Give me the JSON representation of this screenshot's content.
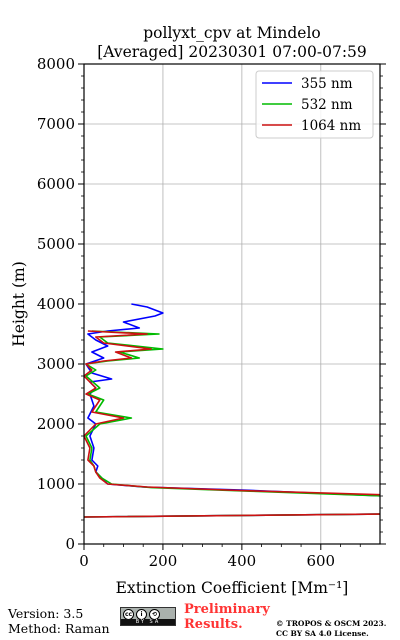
{
  "chart_data": {
    "type": "line",
    "title_line1": "pollyxt_cpv at Mindelo",
    "title_line2": "[Averaged] 20230301 07:00-07:59",
    "xlabel": "Extinction Coefficient [Mm⁻¹]",
    "ylabel": "Height (m)",
    "xlim": [
      0,
      750
    ],
    "ylim": [
      0,
      8000
    ],
    "x_ticks": [
      "0",
      "200",
      "400",
      "600"
    ],
    "x_tick_values": [
      0,
      200,
      400,
      600
    ],
    "y_ticks": [
      "0",
      "1000",
      "2000",
      "3000",
      "4000",
      "5000",
      "6000",
      "7000",
      "8000"
    ],
    "y_tick_values": [
      0,
      1000,
      2000,
      3000,
      4000,
      5000,
      6000,
      7000,
      8000
    ],
    "grid": true,
    "legend_position": "top-right",
    "series": [
      {
        "name": "355 nm",
        "color": "#0000ff",
        "points": [
          [
            0,
            450
          ],
          [
            760,
            500
          ],
          [
            760,
            800
          ],
          [
            400,
            900
          ],
          [
            150,
            950
          ],
          [
            60,
            1000
          ],
          [
            45,
            1100
          ],
          [
            30,
            1200
          ],
          [
            35,
            1300
          ],
          [
            20,
            1400
          ],
          [
            25,
            1600
          ],
          [
            15,
            1800
          ],
          [
            30,
            2000
          ],
          [
            10,
            2100
          ],
          [
            25,
            2300
          ],
          [
            15,
            2500
          ],
          [
            30,
            2600
          ],
          [
            15,
            2700
          ],
          [
            70,
            2750
          ],
          [
            20,
            2850
          ],
          [
            5,
            3000
          ],
          [
            50,
            3100
          ],
          [
            20,
            3200
          ],
          [
            60,
            3300
          ],
          [
            30,
            3400
          ],
          [
            10,
            3500
          ],
          [
            60,
            3550
          ],
          [
            140,
            3600
          ],
          [
            100,
            3700
          ],
          [
            180,
            3800
          ],
          [
            200,
            3850
          ],
          [
            160,
            3950
          ],
          [
            120,
            4000
          ]
        ]
      },
      {
        "name": "532 nm",
        "color": "#00bb00",
        "points": [
          [
            0,
            450
          ],
          [
            760,
            500
          ],
          [
            760,
            800
          ],
          [
            420,
            880
          ],
          [
            170,
            940
          ],
          [
            70,
            1000
          ],
          [
            45,
            1100
          ],
          [
            30,
            1200
          ],
          [
            25,
            1300
          ],
          [
            15,
            1400
          ],
          [
            20,
            1600
          ],
          [
            5,
            1800
          ],
          [
            40,
            2000
          ],
          [
            120,
            2100
          ],
          [
            30,
            2200
          ],
          [
            50,
            2400
          ],
          [
            10,
            2500
          ],
          [
            40,
            2600
          ],
          [
            5,
            2800
          ],
          [
            30,
            2900
          ],
          [
            5,
            3000
          ],
          [
            60,
            3050
          ],
          [
            140,
            3100
          ],
          [
            90,
            3200
          ],
          [
            200,
            3250
          ],
          [
            60,
            3350
          ],
          [
            40,
            3450
          ],
          [
            190,
            3500
          ],
          [
            20,
            3550
          ]
        ]
      },
      {
        "name": "1064 nm",
        "color": "#cc1111",
        "points": [
          [
            0,
            450
          ],
          [
            760,
            500
          ],
          [
            760,
            820
          ],
          [
            400,
            890
          ],
          [
            160,
            950
          ],
          [
            60,
            1000
          ],
          [
            40,
            1100
          ],
          [
            30,
            1200
          ],
          [
            25,
            1300
          ],
          [
            10,
            1400
          ],
          [
            15,
            1600
          ],
          [
            0,
            1800
          ],
          [
            30,
            2000
          ],
          [
            100,
            2100
          ],
          [
            20,
            2200
          ],
          [
            40,
            2400
          ],
          [
            5,
            2500
          ],
          [
            30,
            2600
          ],
          [
            0,
            2800
          ],
          [
            20,
            2900
          ],
          [
            5,
            3000
          ],
          [
            50,
            3050
          ],
          [
            120,
            3100
          ],
          [
            80,
            3200
          ],
          [
            170,
            3250
          ],
          [
            50,
            3350
          ],
          [
            30,
            3450
          ],
          [
            160,
            3500
          ],
          [
            10,
            3550
          ]
        ]
      }
    ]
  },
  "footer": {
    "version": "Version: 3.5",
    "method": "Method: Raman",
    "preliminary_line1": "Preliminary",
    "preliminary_line2": "Results.",
    "copyright_line1": "© TROPOS & OSCM 2023.",
    "copyright_line2": "CC BY SA 4.0 License.",
    "license_badge_text": "BY SA",
    "license_icons": [
      "cc-icon",
      "person-icon",
      "share-alike-icon"
    ]
  }
}
